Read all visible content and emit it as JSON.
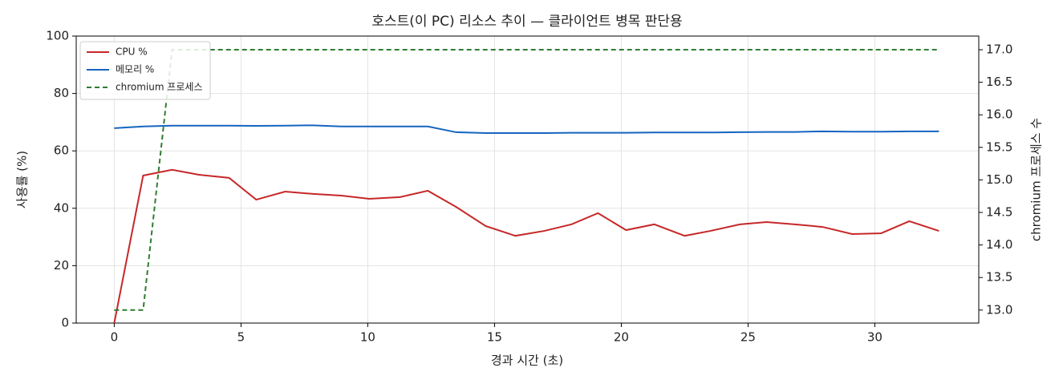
{
  "chart_data": {
    "type": "line",
    "title": "호스트(이 PC) 리소스 추이 — 클라이언트 병목 판단용",
    "x_label": "경과 시간 (초)",
    "y_label": "사용률 (%)",
    "y2_label": "chromium 프로세스 수",
    "x": [
      0,
      1.14,
      2.28,
      3.32,
      4.53,
      5.6,
      6.74,
      7.85,
      8.96,
      10.06,
      11.27,
      12.37,
      13.48,
      14.65,
      15.82,
      16.96,
      18.04,
      19.08,
      20.19,
      21.3,
      22.5,
      23.51,
      24.68,
      25.73,
      26.84,
      27.94,
      29.11,
      30.25,
      31.36,
      32.53
    ],
    "series": [
      {
        "name": "CPU %",
        "color": "#c62828",
        "dash": false,
        "values": [
          0,
          51.4,
          53.4,
          51.7,
          50.6,
          43.0,
          45.8,
          45.0,
          44.4,
          43.3,
          43.9,
          46.1,
          40.5,
          33.8,
          30.4,
          32.1,
          34.4,
          38.3,
          32.4,
          34.4,
          30.4,
          32.1,
          34.4,
          35.2,
          34.4,
          33.5,
          31.0,
          31.3,
          35.5,
          32.1
        ]
      },
      {
        "name": "메모리 %",
        "color": "#1565c0",
        "dash": false,
        "values": [
          67.9,
          68.5,
          68.8,
          68.8,
          68.8,
          68.7,
          68.8,
          68.9,
          68.5,
          68.5,
          68.5,
          68.5,
          66.5,
          66.2,
          66.2,
          66.2,
          66.3,
          66.3,
          66.3,
          66.4,
          66.4,
          66.4,
          66.5,
          66.6,
          66.6,
          66.8,
          66.7,
          66.7,
          66.8,
          66.8
        ]
      },
      {
        "name": "chromium 프로세스",
        "color": "#2e7d32",
        "dash": true,
        "axis": "y2",
        "values": [
          13,
          13,
          17,
          17,
          17,
          17,
          17,
          17,
          17,
          17,
          17,
          17,
          17,
          17,
          17,
          17,
          17,
          17,
          17,
          17,
          17,
          17,
          17,
          17,
          17,
          17,
          17,
          17,
          17,
          17
        ]
      }
    ],
    "xlim": [
      -1.5,
      34.1
    ],
    "xticks": [
      0,
      5,
      10,
      15,
      20,
      25,
      30
    ],
    "ylim": [
      0,
      100
    ],
    "yticks": [
      0,
      20,
      40,
      60,
      80,
      100
    ],
    "y2lim": [
      12.8,
      17.21
    ],
    "y2ticks": [
      {
        "value": 13,
        "label": "13.0"
      },
      {
        "value": 13.5,
        "label": "13.5"
      },
      {
        "value": 14,
        "label": "14.0"
      },
      {
        "value": 14.5,
        "label": "14.5"
      },
      {
        "value": 15,
        "label": "15.0"
      },
      {
        "value": 15.5,
        "label": "15.5"
      },
      {
        "value": 16,
        "label": "16.0"
      },
      {
        "value": 16.5,
        "label": "16.5"
      },
      {
        "value": 17,
        "label": "17.0"
      }
    ],
    "grid": true,
    "legend": "upper-left"
  }
}
